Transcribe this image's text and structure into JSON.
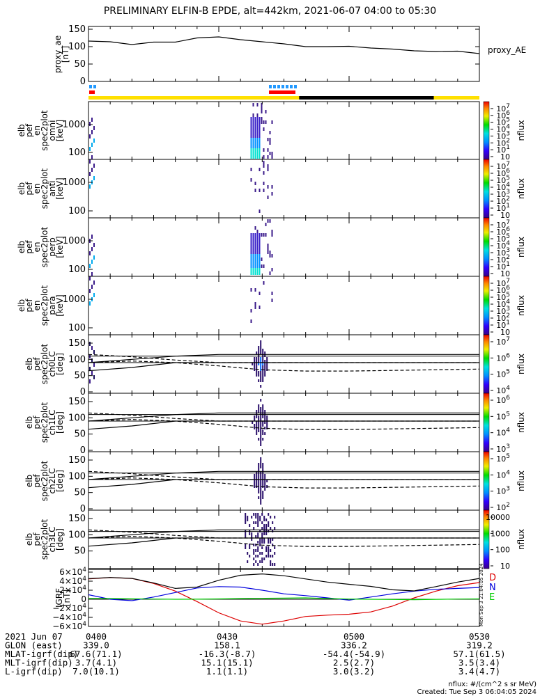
{
  "title": "PRELIMINARY ELFIN-B EPDE, alt=442km, 2021-06-07 04:00 to 05:30",
  "colors": {
    "sun": "#ffe000",
    "shadow": "#000000",
    "ae_blue": "#2299ff",
    "science_red": "#ff0000",
    "grf_D": "#dd0000",
    "grf_N": "#0000dd",
    "grf_E": "#00cc00"
  },
  "ae_panel": {
    "ylabel": [
      "proxy_ae",
      "[nT]"
    ],
    "yticks": [
      "150",
      "100",
      "50",
      "0"
    ],
    "legend": "proxy_AE"
  },
  "spectrogram_panels": [
    {
      "ylabel": [
        "elb",
        "pef",
        "en",
        "spec2plot",
        "omni",
        "[keV]"
      ],
      "yticks": [
        "1000",
        "100"
      ],
      "ztitle": "nflux",
      "zticks": [
        "10",
        "10",
        "10",
        "10",
        "10",
        "10",
        "10",
        "10"
      ],
      "zexp": [
        "7",
        "6",
        "5",
        "4",
        "3",
        "2",
        "1",
        ""
      ]
    },
    {
      "ylabel": [
        "elb",
        "pef",
        "en",
        "spec2plot",
        "anti",
        "[keV]"
      ],
      "yticks": [
        "1000",
        "100"
      ],
      "ztitle": "nflux",
      "zticks": [
        "10",
        "10",
        "10",
        "10",
        "10",
        "10",
        "10",
        "10"
      ],
      "zexp": [
        "7",
        "6",
        "5",
        "4",
        "3",
        "2",
        "1",
        ""
      ]
    },
    {
      "ylabel": [
        "elb",
        "pef",
        "en",
        "spec2plot",
        "perp",
        "[keV]"
      ],
      "yticks": [
        "1000",
        "100"
      ],
      "ztitle": "nflux",
      "zticks": [
        "10",
        "10",
        "10",
        "10",
        "10",
        "10",
        "10",
        "10"
      ],
      "zexp": [
        "7",
        "6",
        "5",
        "4",
        "3",
        "2",
        "1",
        ""
      ]
    },
    {
      "ylabel": [
        "elb",
        "pef",
        "en",
        "spec2plot",
        "para",
        "[keV]"
      ],
      "yticks": [
        "1000",
        "100"
      ],
      "ztitle": "nflux",
      "zticks": [
        "10",
        "10",
        "10",
        "10",
        "10",
        "10",
        "10",
        "10"
      ],
      "zexp": [
        "7",
        "6",
        "5",
        "4",
        "3",
        "2",
        "1",
        ""
      ]
    }
  ],
  "pa_panels": [
    {
      "ylabel": [
        "elb",
        "pef",
        "spec2plot",
        "ch0LC",
        "[deg]"
      ],
      "yticks": [
        "150",
        "100",
        "50",
        "0"
      ],
      "ztitle": "nflux",
      "zticks": [
        "10",
        "10",
        "10",
        "10"
      ],
      "zexp": [
        "7",
        "6",
        "5",
        "4"
      ]
    },
    {
      "ylabel": [
        "elb",
        "pef",
        "spec2plot",
        "ch1LC",
        "[deg]"
      ],
      "yticks": [
        "150",
        "100",
        "50",
        "0"
      ],
      "ztitle": "nflux",
      "zticks": [
        "10",
        "10",
        "10",
        "10"
      ],
      "zexp": [
        "6",
        "5",
        "4",
        "3"
      ]
    },
    {
      "ylabel": [
        "elb",
        "pef",
        "spec2plot",
        "ch2LC",
        "[deg]"
      ],
      "yticks": [
        "150",
        "100",
        "50",
        "0"
      ],
      "ztitle": "nflux",
      "zticks": [
        "10",
        "10",
        "10",
        "10"
      ],
      "zexp": [
        "5",
        "4",
        "3",
        "2"
      ]
    },
    {
      "ylabel": [
        "elb",
        "pef",
        "spec2plot",
        "ch3LC",
        "[deg]"
      ],
      "yticks": [
        "150",
        "100",
        "50"
      ],
      "ztitle": "nflux",
      "zticks": [
        "10000",
        "1000",
        "100",
        "10"
      ],
      "zexp": [
        "",
        "",
        "",
        ""
      ]
    }
  ],
  "grf_panel": {
    "ylabel": [
      "IGRF",
      "[nT]"
    ],
    "yticks": [
      "6×10",
      "4×10",
      "2×10",
      "0",
      "−2×10",
      "−4×10",
      "−6×10"
    ],
    "yexp": [
      "4",
      "4",
      "4",
      "",
      "4",
      "4",
      "4"
    ],
    "legend": [
      "D",
      "N",
      "E"
    ],
    "side_note": "Mon Sep  3 21:04:05 2024"
  },
  "footer": {
    "rows": [
      [
        "2021 Jun 07",
        "0400",
        "0430",
        "0500",
        "0530"
      ],
      [
        "GLON (east)",
        "339.0",
        "158.1",
        "336.2",
        "319.2"
      ],
      [
        "MLAT-igrf(dip)",
        "67.6(71.1)",
        "-16.3(-8.7)",
        "-54.4(-54.9)",
        "57.1(61.5)"
      ],
      [
        "MLT-igrf(dip)",
        "3.7(4.1)",
        "15.1(15.1)",
        "2.5(2.7)",
        "3.5(3.4)"
      ],
      [
        "L-igrf(dip)",
        "7.0(10.1)",
        "1.1(1.1)",
        "3.0(3.2)",
        "3.4(4.7)"
      ]
    ],
    "note1": "nflux: #/(cm^2 s sr MeV)",
    "note2": "Created: Tue Sep  3 06:04:05 2024"
  },
  "chart_data": {
    "type": "line",
    "x_range": [
      "04:00",
      "05:30"
    ],
    "x_ticks": [
      "0400",
      "0430",
      "0500",
      "0530"
    ],
    "proxy_ae": {
      "ylim": [
        0,
        150
      ],
      "x_min": [
        0,
        5,
        10,
        15,
        20,
        25,
        30,
        35,
        40,
        45,
        50,
        55,
        60,
        65,
        70,
        75,
        80,
        85,
        90
      ],
      "values": [
        116,
        114,
        106,
        113,
        113,
        125,
        128,
        120,
        114,
        108,
        100,
        100,
        101,
        96,
        93,
        88,
        86,
        87,
        80
      ]
    },
    "orbit_bars": {
      "science_zones_min": [
        [
          0,
          1.5
        ],
        [
          37.5,
          41.5
        ]
      ],
      "shadow_min": [
        48.5,
        79.5
      ]
    },
    "igrf": {
      "ylim": [
        -60000,
        60000
      ],
      "x_min": [
        0,
        5,
        10,
        15,
        20,
        25,
        30,
        35,
        40,
        45,
        50,
        55,
        60,
        65,
        70,
        75,
        80,
        85,
        90
      ],
      "series": [
        {
          "name": "D",
          "values": [
            45000,
            48000,
            46000,
            35000,
            18000,
            -5000,
            -30000,
            -48000,
            -55000,
            -48000,
            -38000,
            -35000,
            -33000,
            -28000,
            -15000,
            3000,
            18000,
            30000,
            37000
          ]
        },
        {
          "name": "N",
          "values": [
            10000,
            0,
            -3000,
            5000,
            15000,
            25000,
            28000,
            27000,
            20000,
            12000,
            8000,
            3000,
            -2000,
            5000,
            12000,
            18000,
            22000,
            24000,
            26000
          ]
        },
        {
          "name": "E",
          "values": [
            2000,
            1500,
            1000,
            500,
            0,
            200,
            800,
            1500,
            2000,
            2500,
            3000,
            1500,
            500,
            0,
            -500,
            -1000,
            -200,
            400,
            800
          ]
        },
        {
          "name": "F",
          "values": [
            45500,
            48100,
            46200,
            36000,
            24000,
            27000,
            42000,
            53000,
            56000,
            52000,
            45000,
            38000,
            33000,
            28500,
            21000,
            18500,
            28000,
            38000,
            46000
          ]
        }
      ]
    },
    "loss_cone_overlay": {
      "ylim": [
        0,
        180
      ],
      "x_min": [
        0,
        10,
        20,
        30,
        40,
        50,
        60,
        70,
        80,
        90
      ],
      "solid_upper": [
        90,
        100,
        110,
        115,
        115,
        115,
        115,
        115,
        115,
        115
      ],
      "solid_lower": [
        65,
        75,
        90,
        90,
        90,
        90,
        90,
        90,
        90,
        90
      ],
      "dashed_upper": [
        115,
        108,
        98,
        90,
        90,
        90,
        90,
        90,
        90,
        90
      ],
      "dashed_lower": [
        90,
        95,
        90,
        80,
        68,
        64,
        64,
        66,
        68,
        70
      ],
      "ref_lines": [
        90,
        110
      ]
    },
    "spectrogram_activity_min": [
      [
        0,
        1.5
      ],
      [
        37,
        42
      ]
    ],
    "energy_range_keV": [
      60,
      6000
    ]
  }
}
